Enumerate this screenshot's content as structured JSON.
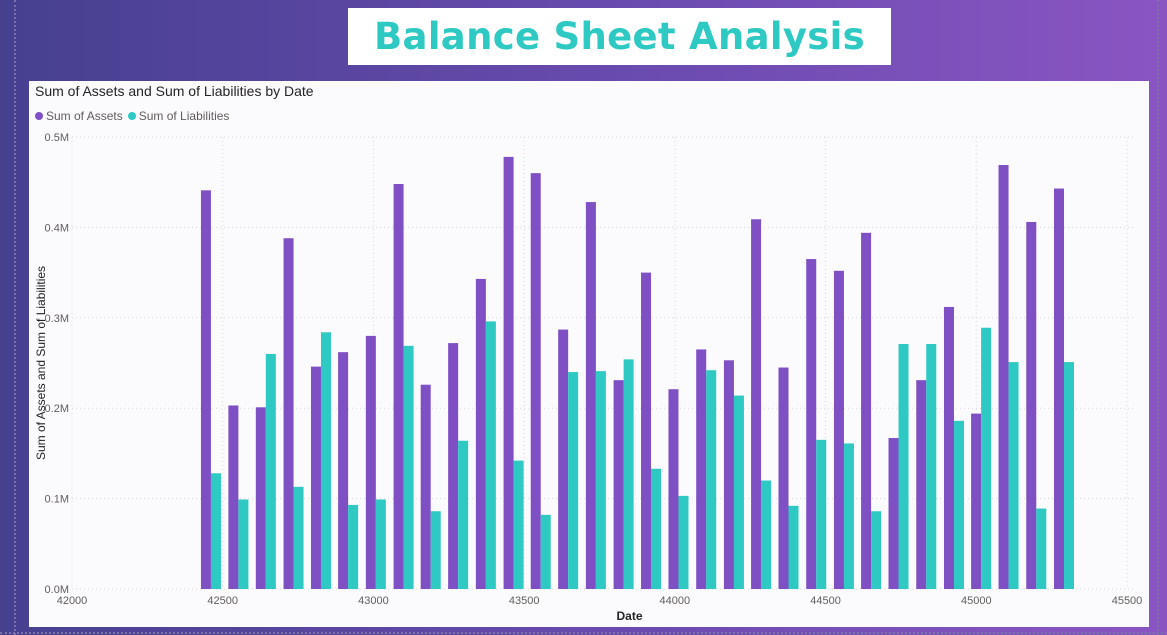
{
  "page": {
    "title": "Balance Sheet Analysis"
  },
  "chart_data": {
    "type": "bar",
    "title": "Sum of Assets and Sum of Liabilities by Date",
    "xlabel": "Date",
    "ylabel": "Sum of Assets and Sum of Liabilities",
    "xlim": [
      42000,
      45500
    ],
    "ylim": [
      0,
      500000
    ],
    "x_ticks": [
      "42000",
      "42500",
      "43000",
      "43500",
      "44000",
      "44500",
      "45000",
      "45500"
    ],
    "y_ticks": [
      "0.0M",
      "0.1M",
      "0.2M",
      "0.3M",
      "0.4M",
      "0.5M"
    ],
    "grid": true,
    "legend_position": "top-left",
    "x": [
      42461,
      42552,
      42643,
      42735,
      42826,
      42916,
      43008,
      43100,
      43190,
      43281,
      43373,
      43465,
      43555,
      43646,
      43738,
      43830,
      43921,
      44012,
      44104,
      44196,
      44286,
      44377,
      44469,
      44561,
      44651,
      44742,
      44834,
      44926,
      45016,
      45107,
      45199,
      45291
    ],
    "series": [
      {
        "name": "Sum of Assets",
        "color": "#7f4fc4",
        "values": [
          441000,
          203000,
          201000,
          388000,
          246000,
          262000,
          280000,
          448000,
          226000,
          272000,
          343000,
          478000,
          460000,
          287000,
          428000,
          231000,
          350000,
          221000,
          265000,
          253000,
          409000,
          245000,
          365000,
          352000,
          394000,
          167000,
          231000,
          312000,
          194000,
          469000,
          406000,
          443000
        ]
      },
      {
        "name": "Sum of Liabilities",
        "color": "#2ec9c3",
        "values": [
          128000,
          99000,
          260000,
          113000,
          284000,
          93000,
          99000,
          269000,
          86000,
          164000,
          296000,
          142000,
          82000,
          240000,
          241000,
          254000,
          133000,
          103000,
          242000,
          214000,
          120000,
          92000,
          165000,
          161000,
          86000,
          271000,
          271000,
          186000,
          289000,
          251000,
          89000,
          251000
        ]
      }
    ]
  }
}
